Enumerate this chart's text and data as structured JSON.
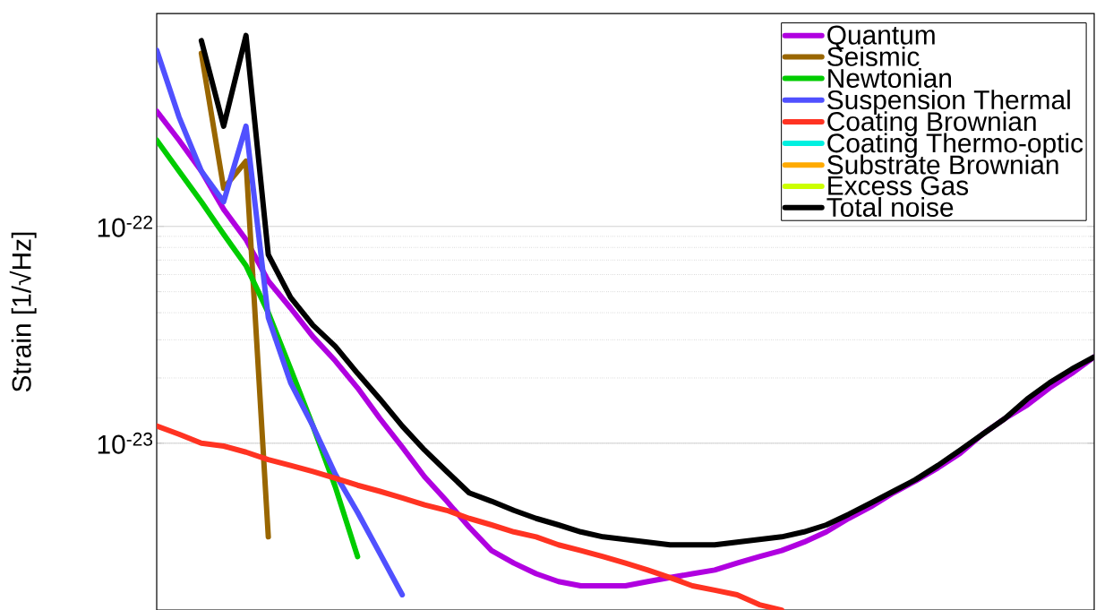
{
  "chart_data": {
    "type": "line",
    "ylabel": "Strain [1/√Hz]",
    "log": "y",
    "grid": "y",
    "legend": "top right",
    "categories": [
      null,
      null,
      null,
      null,
      null,
      null,
      null,
      null,
      null,
      null,
      null,
      null,
      null,
      null,
      null,
      null,
      null,
      null,
      null,
      null,
      null,
      null,
      null,
      null,
      null,
      null,
      null,
      null,
      null,
      null,
      null,
      null,
      null,
      null,
      null,
      null,
      null,
      null,
      null,
      null,
      null,
      null,
      null
    ],
    "ylim": [
      1.7e-24,
      9.6e-22
    ],
    "yticks": [
      {
        "value": 1e-23,
        "label": "10$^{-23}$"
      },
      {
        "value": 1e-22,
        "label": "10$^{-22}$"
      }
    ],
    "series": [
      {
        "name": "Quantum",
        "color": "#b000e0",
        "values": [
          3.4e-22,
          2.5e-22,
          1.8e-22,
          1.2e-22,
          8.7e-23,
          5.6e-23,
          4.2e-23,
          3.1e-23,
          2.4e-23,
          1.8e-23,
          1.3e-23,
          9.6e-24,
          7e-24,
          5.4e-24,
          4.1e-24,
          3.2e-24,
          2.8e-24,
          2.5e-24,
          2.3e-24,
          2.2e-24,
          2.2e-24,
          2.2e-24,
          2.3e-24,
          2.4e-24,
          2.5e-24,
          2.6e-24,
          2.8e-24,
          3e-24,
          3.2e-24,
          3.5e-24,
          3.9e-24,
          4.5e-24,
          5.1e-24,
          5.9e-24,
          6.7e-24,
          7.7e-24,
          9e-24,
          1.1e-23,
          1.3e-23,
          1.5e-23,
          1.8e-23,
          2.1e-23,
          2.5e-23
        ]
      },
      {
        "name": "Seismic",
        "color": "#996600",
        "values": [
          null,
          null,
          6.3e-22,
          1.5e-22,
          2e-22,
          3.7e-24,
          null,
          null,
          null,
          null,
          null,
          null,
          null,
          null,
          null,
          null,
          null,
          null,
          null,
          null,
          null,
          null,
          null,
          null,
          null,
          null,
          null,
          null,
          null,
          null,
          null,
          null,
          null,
          null,
          null,
          null,
          null,
          null,
          null,
          null,
          null,
          null,
          null
        ]
      },
      {
        "name": "Newtonian",
        "color": "#00cc00",
        "values": [
          2.5e-22,
          1.8e-22,
          1.3e-22,
          9.2e-23,
          6.6e-23,
          4e-23,
          2.2e-23,
          1.2e-23,
          6.3e-24,
          3e-24,
          null,
          null,
          null,
          null,
          null,
          null,
          null,
          null,
          null,
          null,
          null,
          null,
          null,
          null,
          null,
          null,
          null,
          null,
          null,
          null,
          null,
          null,
          null,
          null,
          null,
          null,
          null,
          null,
          null,
          null,
          null,
          null,
          null
        ]
      },
      {
        "name": "Suspension Thermal",
        "color": "#5050ff",
        "values": [
          6.5e-22,
          3.2e-22,
          1.8e-22,
          1.3e-22,
          2.9e-22,
          3.8e-23,
          1.9e-23,
          1.2e-23,
          7.2e-24,
          4.8e-24,
          3.1e-24,
          2e-24,
          null,
          null,
          null,
          null,
          null,
          null,
          null,
          null,
          null,
          null,
          null,
          null,
          null,
          null,
          null,
          null,
          null,
          null,
          null,
          null,
          null,
          null,
          null,
          null,
          null,
          null,
          null,
          null,
          null,
          null,
          null
        ]
      },
      {
        "name": "Coating Brownian",
        "color": "#ff3322",
        "values": [
          1.2e-23,
          1.1e-23,
          1e-23,
          9.7e-24,
          9.1e-24,
          8.4e-24,
          7.9e-24,
          7.4e-24,
          6.9e-24,
          6.4e-24,
          6e-24,
          5.6e-24,
          5.2e-24,
          4.9e-24,
          4.5e-24,
          4.2e-24,
          3.9e-24,
          3.7e-24,
          3.4e-24,
          3.2e-24,
          3e-24,
          2.8e-24,
          2.6e-24,
          2.4e-24,
          2.2e-24,
          2.1e-24,
          2e-24,
          1.8e-24,
          1.7e-24,
          null,
          null,
          null,
          null,
          null,
          null,
          null,
          null,
          null,
          null,
          null,
          null,
          null,
          null
        ]
      },
      {
        "name": "Coating Thermo-optic",
        "color": "#00f0e0",
        "values": [
          null,
          null,
          null,
          null,
          null,
          null,
          null,
          null,
          null,
          null,
          null,
          null,
          null,
          null,
          null,
          null,
          null,
          null,
          null,
          null,
          null,
          null,
          null,
          null,
          null,
          null,
          null,
          null,
          null,
          null,
          null,
          null,
          null,
          null,
          null,
          null,
          null,
          null,
          null,
          null,
          null,
          null,
          null
        ]
      },
      {
        "name": "Substrate Brownian",
        "color": "#ffaa00",
        "values": [
          null,
          null,
          null,
          null,
          null,
          null,
          null,
          null,
          null,
          null,
          null,
          null,
          null,
          null,
          null,
          null,
          null,
          null,
          null,
          null,
          null,
          null,
          null,
          null,
          null,
          null,
          null,
          null,
          null,
          null,
          null,
          null,
          null,
          null,
          null,
          null,
          null,
          null,
          null,
          null,
          null,
          null,
          null
        ]
      },
      {
        "name": "Excess Gas",
        "color": "#ccff00",
        "values": [
          null,
          null,
          null,
          null,
          null,
          null,
          null,
          null,
          null,
          null,
          null,
          null,
          null,
          null,
          null,
          null,
          null,
          null,
          null,
          null,
          null,
          null,
          null,
          null,
          null,
          null,
          null,
          null,
          null,
          null,
          null,
          null,
          null,
          null,
          null,
          null,
          null,
          null,
          null,
          null,
          null,
          null,
          null
        ]
      },
      {
        "name": "Total noise",
        "color": "#000000",
        "values": [
          null,
          null,
          7.2e-22,
          2.9e-22,
          7.6e-22,
          7.4e-23,
          4.7e-23,
          3.5e-23,
          2.8e-23,
          2.1e-23,
          1.6e-23,
          1.2e-23,
          9.3e-24,
          7.4e-24,
          5.9e-24,
          5.4e-24,
          4.9e-24,
          4.5e-24,
          4.2e-24,
          3.9e-24,
          3.7e-24,
          3.6e-24,
          3.5e-24,
          3.4e-24,
          3.4e-24,
          3.4e-24,
          3.5e-24,
          3.6e-24,
          3.7e-24,
          3.9e-24,
          4.2e-24,
          4.7e-24,
          5.3e-24,
          6e-24,
          6.8e-24,
          7.9e-24,
          9.3e-24,
          1.1e-23,
          1.3e-23,
          1.6e-23,
          1.9e-23,
          2.2e-23,
          2.5e-23
        ]
      }
    ]
  }
}
